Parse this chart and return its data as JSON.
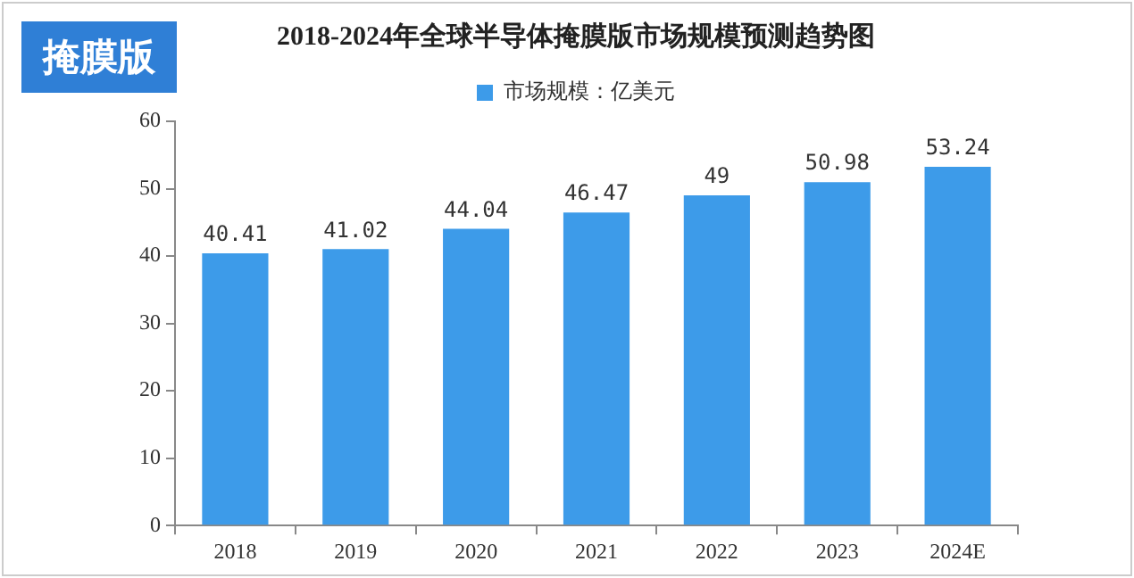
{
  "chart_data": {
    "type": "bar",
    "title": "2018-2024年全球半导体掩膜版市场规模预测趋势图",
    "annotations": [
      "掩膜版"
    ],
    "categories": [
      "2018",
      "2019",
      "2020",
      "2021",
      "2022",
      "2023",
      "2024E"
    ],
    "series": [
      {
        "name": "市场规模：亿美元",
        "color": "#3d9be9",
        "values": [
          40.41,
          41.02,
          44.04,
          46.47,
          49,
          50.98,
          53.24
        ]
      }
    ],
    "ylim": [
      0,
      60
    ],
    "yticks": [
      0,
      10,
      20,
      30,
      40,
      50,
      60
    ],
    "grid": false,
    "legend": "top",
    "data_labels": true
  }
}
